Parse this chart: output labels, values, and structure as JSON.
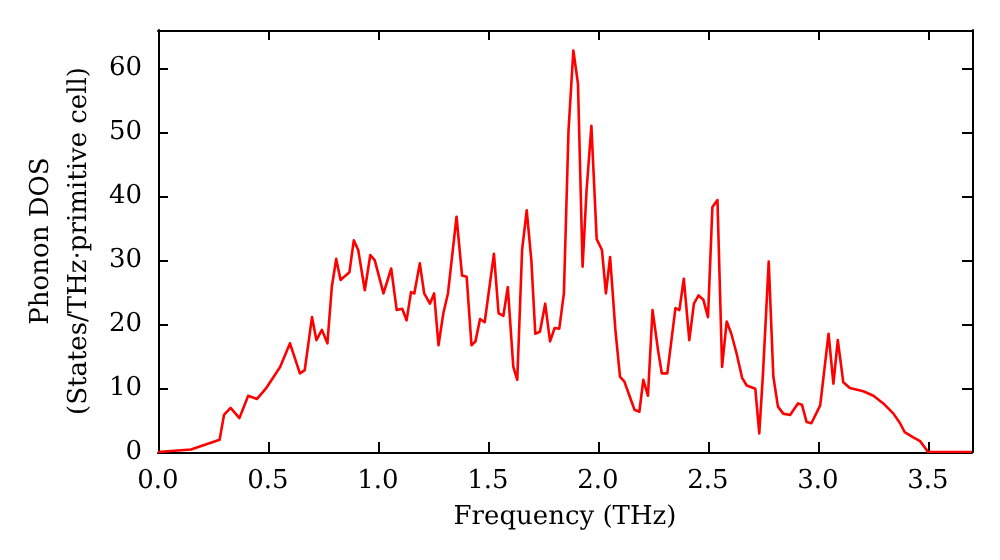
{
  "chart_data": {
    "type": "line",
    "xlabel": "Frequency (THz)",
    "ylabel": "Phonon DOS\n(States/THz·primitive cell)",
    "xlim": [
      0,
      3.7
    ],
    "ylim": [
      0,
      66
    ],
    "xticks": [
      {
        "value": 0,
        "label": "0.0"
      },
      {
        "value": 0.5,
        "label": "0.5"
      },
      {
        "value": 1,
        "label": "1.0"
      },
      {
        "value": 1.5,
        "label": "1.5"
      },
      {
        "value": 2,
        "label": "2.0"
      },
      {
        "value": 2.5,
        "label": "2.5"
      },
      {
        "value": 3,
        "label": "3.0"
      },
      {
        "value": 3.5,
        "label": "3.5"
      }
    ],
    "yticks": [
      0,
      10,
      20,
      30,
      40,
      50,
      60
    ],
    "grid": false,
    "marker": "none",
    "line_style": "solid",
    "series": [
      {
        "color": "#ff0000",
        "x": [
          0,
          0.15,
          0.28,
          0.3,
          0.33,
          0.37,
          0.41,
          0.45,
          0.49,
          0.555,
          0.6,
          0.645,
          0.667,
          0.7,
          0.72,
          0.745,
          0.77,
          0.79,
          0.81,
          0.83,
          0.87,
          0.89,
          0.91,
          0.94,
          0.965,
          0.985,
          1.025,
          1.06,
          1.085,
          1.11,
          1.13,
          1.15,
          1.165,
          1.19,
          1.21,
          1.236,
          1.255,
          1.275,
          1.297,
          1.318,
          1.357,
          1.382,
          1.403,
          1.425,
          1.443,
          1.464,
          1.485,
          1.527,
          1.548,
          1.57,
          1.59,
          1.615,
          1.633,
          1.655,
          1.676,
          1.697,
          1.715,
          1.736,
          1.76,
          1.782,
          1.803,
          1.824,
          1.845,
          1.866,
          1.888,
          1.909,
          1.93,
          1.948,
          1.97,
          1.994,
          2.018,
          2.036,
          2.055,
          2.079,
          2.1,
          2.12,
          2.145,
          2.166,
          2.188,
          2.206,
          2.227,
          2.248,
          2.273,
          2.29,
          2.315,
          2.352,
          2.37,
          2.39,
          2.415,
          2.436,
          2.457,
          2.479,
          2.5,
          2.52,
          2.543,
          2.564,
          2.585,
          2.606,
          2.63,
          2.655,
          2.676,
          2.715,
          2.733,
          2.75,
          2.776,
          2.797,
          2.818,
          2.842,
          2.873,
          2.909,
          2.927,
          2.948,
          2.97,
          3.01,
          3.048,
          3.07,
          3.09,
          3.115,
          3.145,
          3.206,
          3.252,
          3.297,
          3.343,
          3.373,
          3.394,
          3.433,
          3.464,
          3.494,
          3.5,
          3.7
        ],
        "values": [
          0,
          0.4,
          1.9,
          5.8,
          6.9,
          5.3,
          8.8,
          8.3,
          9.9,
          13.3,
          17,
          12.3,
          12.8,
          21.1,
          17.5,
          19.1,
          17,
          25.8,
          30.2,
          26.9,
          28.1,
          33.1,
          31.6,
          25.3,
          30.8,
          30,
          24.8,
          28.7,
          22.2,
          22.4,
          20.6,
          25,
          24.8,
          29.5,
          24.8,
          23.2,
          24.8,
          16.7,
          21.7,
          24.8,
          36.8,
          27.6,
          27.4,
          16.7,
          17.3,
          20.8,
          20.3,
          31,
          21.7,
          21.3,
          25.8,
          13.3,
          11.3,
          31.6,
          37.8,
          30,
          18.5,
          18.8,
          23.2,
          17.3,
          19.4,
          19.3,
          24.8,
          50.3,
          62.8,
          57.6,
          29,
          40.9,
          51,
          33.3,
          31.6,
          24.8,
          30.5,
          19.1,
          11.8,
          11,
          8.6,
          6.6,
          6.3,
          11.3,
          8.8,
          22.2,
          15.9,
          12.3,
          12.3,
          22.5,
          22.2,
          27.1,
          17.5,
          23.2,
          24.5,
          23.8,
          21.1,
          38.3,
          39.4,
          13.3,
          20.4,
          18.5,
          15.4,
          11.6,
          10.4,
          9.9,
          2.9,
          12.3,
          29.8,
          11.8,
          7.1,
          6,
          5.8,
          7.6,
          7.4,
          4.7,
          4.5,
          7.3,
          18.5,
          10.7,
          17.5,
          10.9,
          10,
          9.5,
          8.8,
          7.6,
          6,
          4.5,
          3.1,
          2.3,
          1.7,
          0.3,
          0,
          0
        ]
      }
    ]
  }
}
